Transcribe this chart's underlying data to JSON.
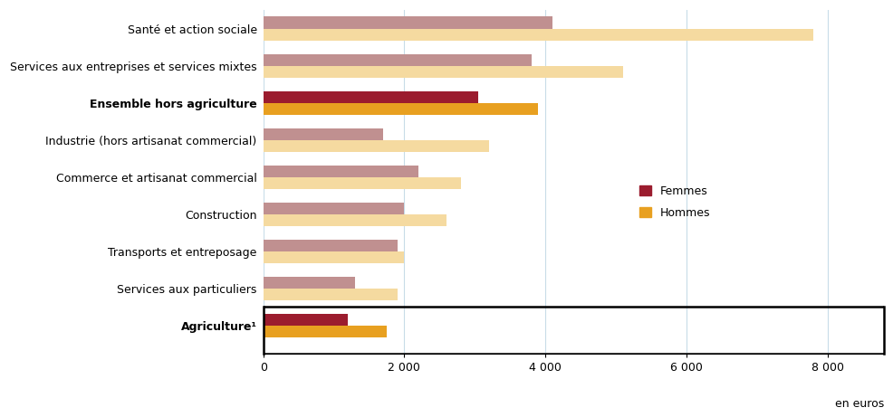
{
  "categories": [
    "Agriculture¹",
    "Services aux particuliers",
    "Transports et entreposage",
    "Construction",
    "Commerce et artisanat commercial",
    "Industrie (hors artisanat commercial)",
    "Ensemble hors agriculture",
    "Services aux entreprises et services mixtes",
    "Santé et action sociale"
  ],
  "femmes": [
    1200,
    1300,
    1900,
    2000,
    2200,
    1700,
    3050,
    3800,
    4100
  ],
  "hommes": [
    1750,
    1900,
    2000,
    2600,
    2800,
    3200,
    3900,
    5100,
    7800
  ],
  "bold_categories": [
    "Ensemble hors agriculture",
    "Agriculture¹"
  ],
  "color_femmes_normal": "#c09090",
  "color_hommes_normal": "#f5daa0",
  "color_femmes_bold": "#9b1c2e",
  "color_hommes_bold": "#e8a020",
  "legend_femmes": "Femmes",
  "legend_hommes": "Hommes",
  "xlabel": "en euros",
  "xlim": [
    0,
    8800
  ],
  "xticks": [
    0,
    2000,
    4000,
    6000,
    8000
  ],
  "xtick_labels": [
    "0",
    "2 000",
    "4 000",
    "6 000",
    "8 000"
  ],
  "grid_color": "#c8dce8",
  "bar_height": 0.32,
  "figsize": [
    9.87,
    4.61
  ],
  "dpi": 100,
  "background_color": "#ffffff",
  "label_fontsize": 9
}
